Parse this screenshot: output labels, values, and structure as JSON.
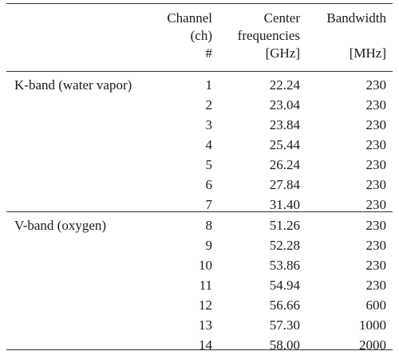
{
  "table": {
    "header": {
      "channel": [
        "Channel",
        "(ch)",
        "#"
      ],
      "frequency": [
        "Center",
        "frequencies",
        "[GHz]"
      ],
      "bandwidth": [
        "Bandwidth",
        "",
        "[MHz]"
      ]
    },
    "groups": [
      {
        "label": "K-band (water vapor)",
        "rows": [
          {
            "ch": "1",
            "freq": "22.24",
            "bw": "230"
          },
          {
            "ch": "2",
            "freq": "23.04",
            "bw": "230"
          },
          {
            "ch": "3",
            "freq": "23.84",
            "bw": "230"
          },
          {
            "ch": "4",
            "freq": "25.44",
            "bw": "230"
          },
          {
            "ch": "5",
            "freq": "26.24",
            "bw": "230"
          },
          {
            "ch": "6",
            "freq": "27.84",
            "bw": "230"
          },
          {
            "ch": "7",
            "freq": "31.40",
            "bw": "230"
          }
        ]
      },
      {
        "label": "V-band (oxygen)",
        "rows": [
          {
            "ch": "8",
            "freq": "51.26",
            "bw": "230"
          },
          {
            "ch": "9",
            "freq": "52.28",
            "bw": "230"
          },
          {
            "ch": "10",
            "freq": "53.86",
            "bw": "230"
          },
          {
            "ch": "11",
            "freq": "54.94",
            "bw": "230"
          },
          {
            "ch": "12",
            "freq": "56.66",
            "bw": "600"
          },
          {
            "ch": "13",
            "freq": "57.30",
            "bw": "1000"
          },
          {
            "ch": "14",
            "freq": "58.00",
            "bw": "2000"
          }
        ]
      }
    ]
  }
}
